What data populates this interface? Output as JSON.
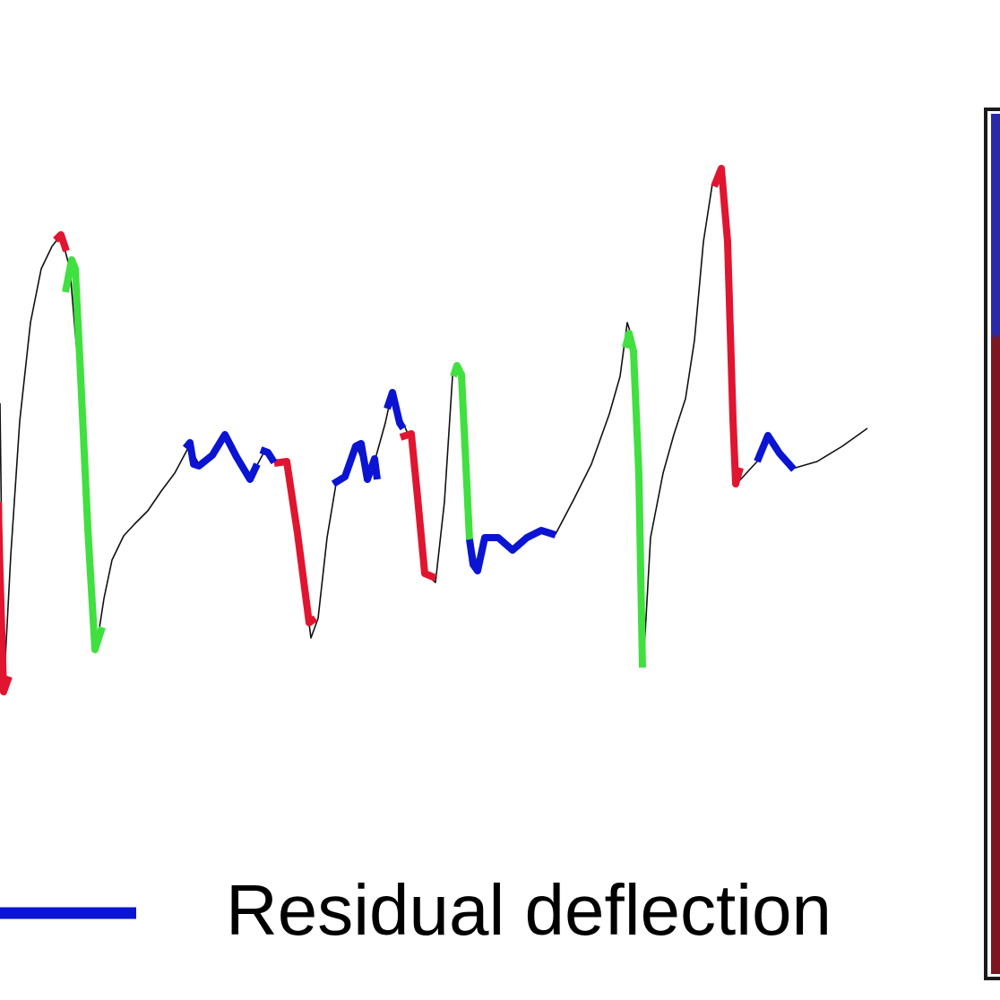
{
  "legend": {
    "residual_label": "Residual deflection",
    "residual_color": "#0a14d2"
  },
  "segment_colors": {
    "red": "#e01530",
    "green": "#3fe03f",
    "blue": "#0a14d2"
  },
  "color_bar": {
    "top_color": "#2a2aa8",
    "bottom_color": "#7e1622"
  }
}
